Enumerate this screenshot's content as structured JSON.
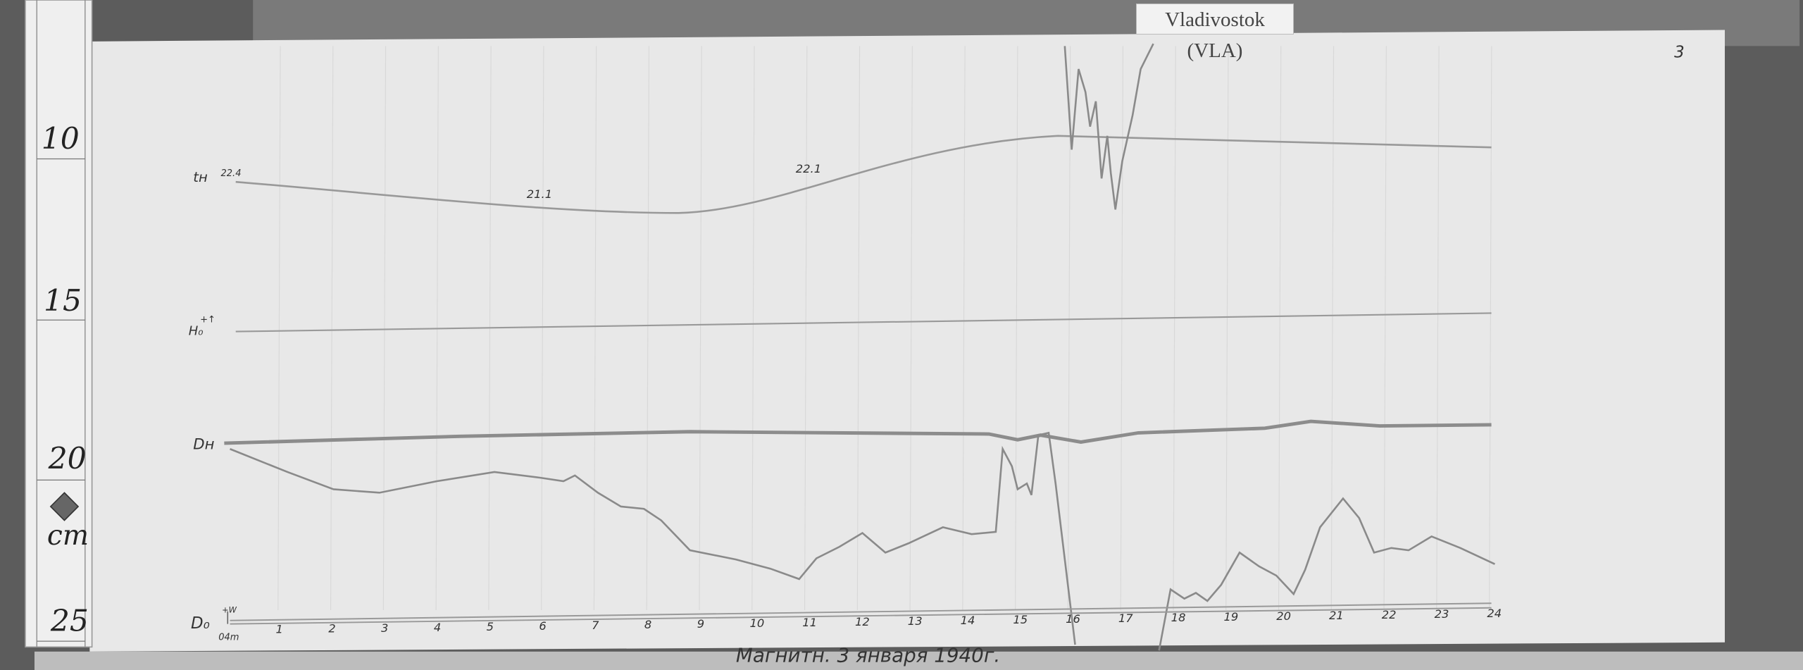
{
  "station_label": "Vladivostok (VLA)",
  "sheet_number": "3",
  "ruler": {
    "marks": [
      "10",
      "15",
      "20",
      "25"
    ],
    "unit": "cm",
    "emblem": "diamond-emblem-icon"
  },
  "traces": {
    "temperature": {
      "label": "tн",
      "start_value": "22.4",
      "annotations": [
        "21.1",
        "22.1"
      ]
    },
    "h_baseline": {
      "label": "H₀",
      "sign": "+↑"
    },
    "h_trace": {
      "label": "Dн"
    },
    "d_baseline": {
      "label": "D₀",
      "sign": "+W",
      "time": "04m"
    }
  },
  "hour_ticks": [
    "1",
    "2",
    "3",
    "4",
    "5",
    "6",
    "7",
    "8",
    "9",
    "10",
    "11",
    "12",
    "13",
    "14",
    "15",
    "16",
    "17",
    "18",
    "19",
    "20",
    "21",
    "22",
    "23",
    "24"
  ],
  "caption": "Магнитн. 3 января 1940г.",
  "colors": {
    "paper": "#e8e8e8",
    "trace": "#8a8a8a",
    "wood": "#5a5a5a"
  }
}
